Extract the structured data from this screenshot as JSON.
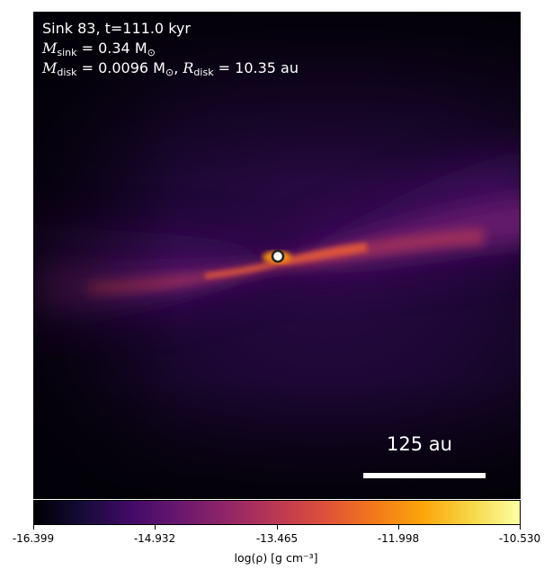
{
  "annotation": {
    "line1": "Sink 83, t=111.0 kyr",
    "msink_symbol": "M",
    "msink_sub": "sink",
    "msink_value": " = 0.34 M",
    "msink_sun": "⊙",
    "mdisk_symbol": "M",
    "mdisk_sub": "disk",
    "mdisk_value": " = 0.0096 M",
    "mdisk_sun": "⊙",
    "rdisk_sep": ", ",
    "rdisk_symbol": "R",
    "rdisk_sub": "disk",
    "rdisk_value": " = 10.35 au"
  },
  "scalebar": {
    "label": "125 au"
  },
  "colorbar": {
    "colormap": "inferno",
    "tick_labels": [
      "-16.399",
      "-14.932",
      "-13.465",
      "-11.998",
      "-10.530"
    ],
    "title": "log(ρ) [g cm⁻³]"
  },
  "colors": {
    "background": "#0a0410",
    "disk_hot": "#f98c0a",
    "sink_marker": "#ffffff"
  }
}
